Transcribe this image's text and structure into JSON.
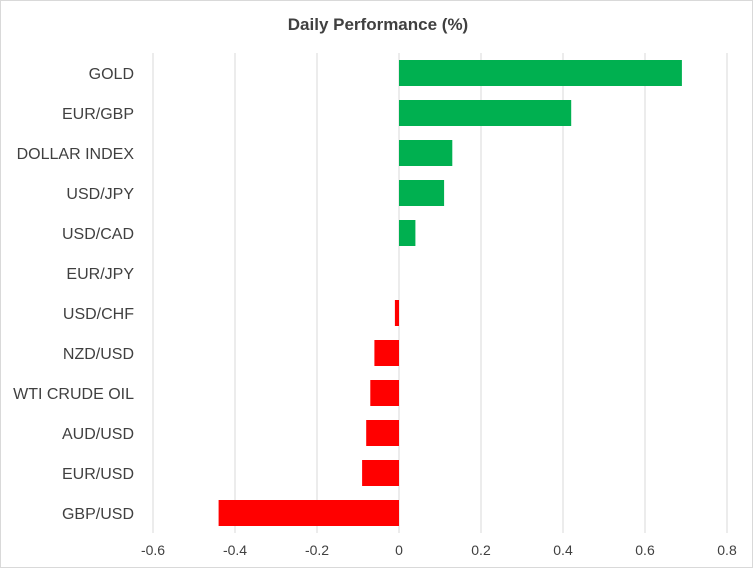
{
  "chart_data": {
    "type": "bar",
    "orientation": "horizontal",
    "title": "Daily Performance  (%)",
    "xlabel": "",
    "ylabel": "",
    "categories": [
      "GOLD",
      "EUR/GBP",
      "DOLLAR INDEX",
      "USD/JPY",
      "USD/CAD",
      "EUR/JPY",
      "USD/CHF",
      "NZD/USD",
      "WTI CRUDE OIL",
      "AUD/USD",
      "EUR/USD",
      "GBP/USD"
    ],
    "values": [
      0.69,
      0.42,
      0.13,
      0.11,
      0.04,
      0.0,
      -0.01,
      -0.06,
      -0.07,
      -0.08,
      -0.09,
      -0.44
    ],
    "xlim": [
      -0.6,
      0.8
    ],
    "xticks": [
      -0.6,
      -0.4,
      -0.2,
      0,
      0.2,
      0.4,
      0.6,
      0.8
    ],
    "xtick_labels": [
      "-0.6",
      "-0.4",
      "-0.2",
      "0",
      "0.2",
      "0.4",
      "0.6",
      "0.8"
    ],
    "grid": "vertical",
    "legend": "none",
    "colors": {
      "positive": "#00b050",
      "negative": "#ff0000",
      "grid": "#d9d9d9",
      "text": "#404040"
    }
  }
}
